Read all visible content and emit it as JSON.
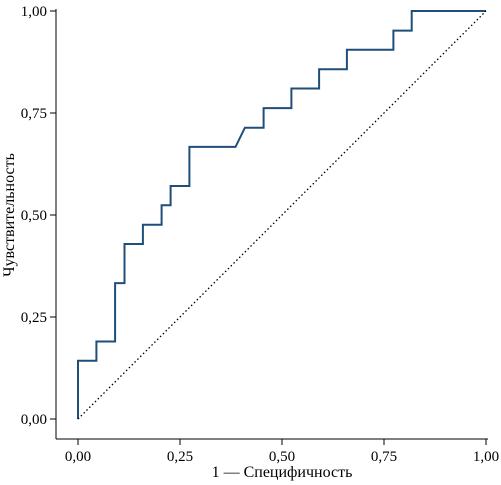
{
  "chart_data": {
    "type": "line",
    "xlabel": "1 — Специфичность",
    "ylabel": "Чувствительность",
    "xlim": [
      0,
      1
    ],
    "ylim": [
      0,
      1
    ],
    "x_ticks": [
      {
        "value": 0,
        "label": "0,00"
      },
      {
        "value": 0.25,
        "label": "0,25"
      },
      {
        "value": 0.5,
        "label": "0,50"
      },
      {
        "value": 0.75,
        "label": "0,75"
      },
      {
        "value": 1,
        "label": "1,00"
      }
    ],
    "y_ticks": [
      {
        "value": 0,
        "label": "0,00"
      },
      {
        "value": 0.25,
        "label": "0,25"
      },
      {
        "value": 0.5,
        "label": "0,50"
      },
      {
        "value": 0.75,
        "label": "0,75"
      },
      {
        "value": 1,
        "label": "1,00"
      }
    ],
    "grid": false,
    "series": [
      {
        "color": "#1f4e79",
        "style": "step",
        "points": [
          [
            0.0,
            0.0
          ],
          [
            0.0,
            0.143
          ],
          [
            0.045,
            0.143
          ],
          [
            0.045,
            0.19
          ],
          [
            0.091,
            0.19
          ],
          [
            0.091,
            0.333
          ],
          [
            0.114,
            0.333
          ],
          [
            0.114,
            0.429
          ],
          [
            0.159,
            0.429
          ],
          [
            0.159,
            0.476
          ],
          [
            0.205,
            0.476
          ],
          [
            0.205,
            0.524
          ],
          [
            0.227,
            0.524
          ],
          [
            0.227,
            0.571
          ],
          [
            0.273,
            0.571
          ],
          [
            0.273,
            0.667
          ],
          [
            0.386,
            0.667
          ],
          [
            0.409,
            0.714
          ],
          [
            0.455,
            0.714
          ],
          [
            0.455,
            0.762
          ],
          [
            0.523,
            0.762
          ],
          [
            0.523,
            0.81
          ],
          [
            0.591,
            0.81
          ],
          [
            0.591,
            0.857
          ],
          [
            0.659,
            0.857
          ],
          [
            0.659,
            0.905
          ],
          [
            0.773,
            0.905
          ],
          [
            0.773,
            0.952
          ],
          [
            0.818,
            0.952
          ],
          [
            0.818,
            1.0
          ],
          [
            1.0,
            1.0
          ]
        ]
      },
      {
        "color": "#000000",
        "style": "dotted",
        "points": [
          [
            0,
            0
          ],
          [
            1,
            1
          ]
        ]
      }
    ]
  }
}
